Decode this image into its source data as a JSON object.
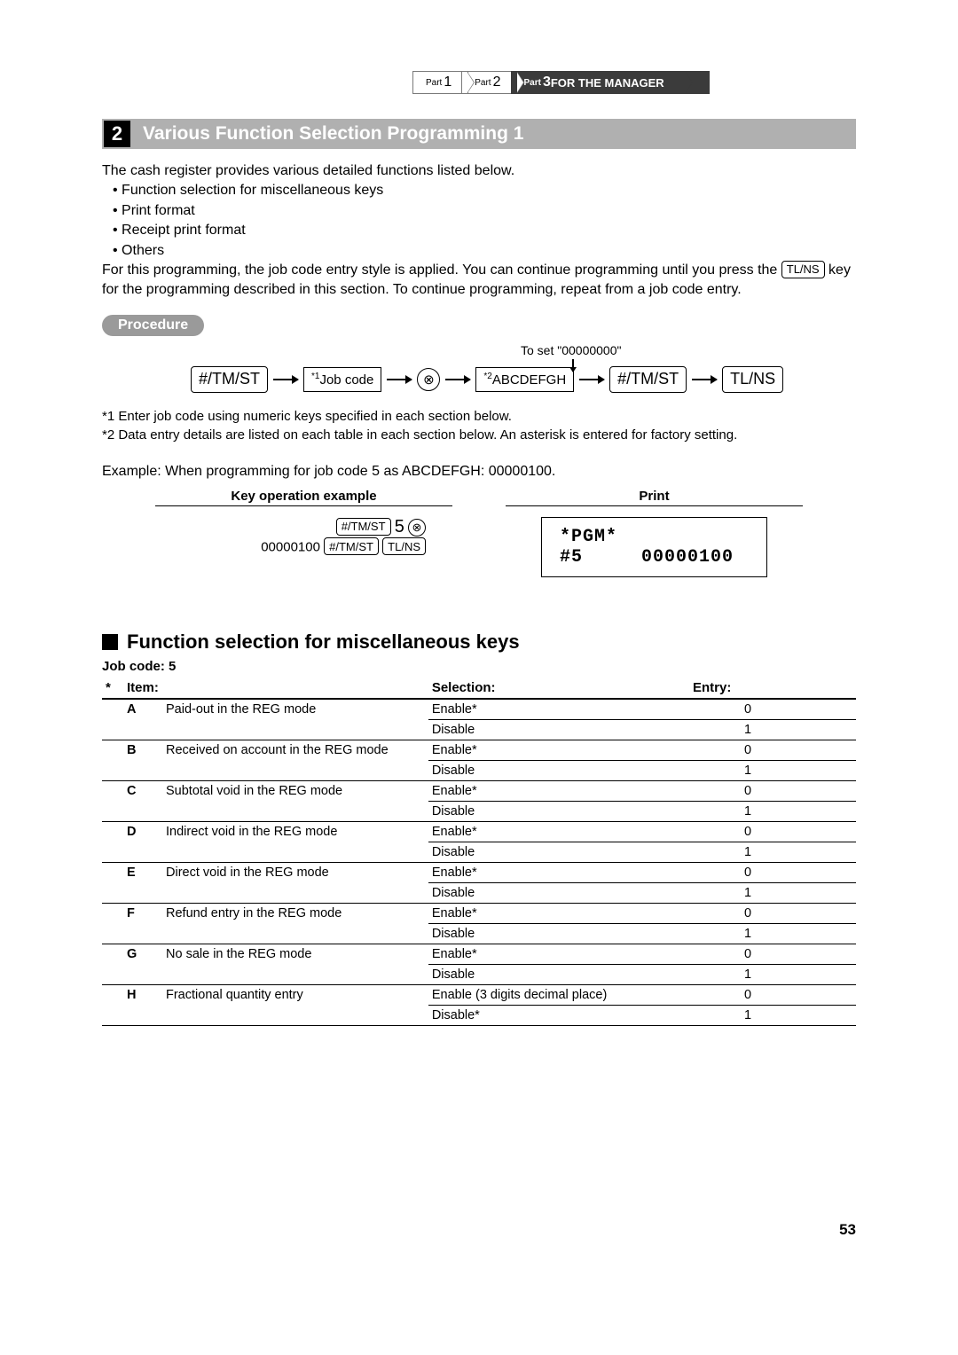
{
  "breadcrumb": {
    "p1_prefix": "Part",
    "p1_num": "1",
    "p2_prefix": "Part",
    "p2_num": "2",
    "p3_prefix": "Part",
    "p3_num": "3",
    "p3_label": " FOR THE MANAGER"
  },
  "section": {
    "num": "2",
    "title": "Various Function Selection Programming 1"
  },
  "intro": "The cash register provides various detailed functions listed below.",
  "bullets": {
    "b1": "• Function selection for miscellaneous keys",
    "b2": "• Print format",
    "b3": "• Receipt print format",
    "b4": "• Others"
  },
  "para2_a": "For this programming, the job code entry style is applied.  You can continue programming until you press the ",
  "tlns": "TL/NS",
  "para2_b": " key for the programming described in this section.  To continue programming, repeat from a job code entry.",
  "procedure_label": "Procedure",
  "flow": {
    "k1": "#/TM/ST",
    "job_sup": "*1",
    "job": "Job code",
    "circle": "⊗",
    "abc_sup": "*2",
    "abc": "ABCDEFGH",
    "k2": "#/TM/ST",
    "k3": "TL/NS",
    "zero_note": "To set \"00000000\""
  },
  "notes": {
    "n1": "*1  Enter job code using numeric keys specified in each section below.",
    "n2": "*2  Data entry details are listed on each table in each section below.  An asterisk is entered for factory setting."
  },
  "example_line": "Example:  When programming for job code 5 as ABCDEFGH: 00000100.",
  "ex_head_left": "Key operation example",
  "ex_head_right": "Print",
  "key_ops": {
    "l1_key": "#/TM/ST",
    "l1_5": "5",
    "l1_circ": "⊗",
    "l2_num": "00000100",
    "l2_k1": "#/TM/ST",
    "l2_k2": "TL/NS"
  },
  "print_box": {
    "l1": "*PGM*",
    "l2_a": "#5",
    "l2_b": "00000100"
  },
  "subhead": "Function selection for miscellaneous keys",
  "jobcode": "Job code:  5",
  "table_head": {
    "star": "*",
    "item": "Item:",
    "sel": "Selection:",
    "entry": "Entry:"
  },
  "rows": [
    {
      "l": "A",
      "item": "Paid-out in the REG mode",
      "s1": "Enable*",
      "e1": "0",
      "s2": "Disable",
      "e2": "1"
    },
    {
      "l": "B",
      "item": "Received on account in the REG mode",
      "s1": "Enable*",
      "e1": "0",
      "s2": "Disable",
      "e2": "1"
    },
    {
      "l": "C",
      "item": "Subtotal void in the REG mode",
      "s1": "Enable*",
      "e1": "0",
      "s2": "Disable",
      "e2": "1"
    },
    {
      "l": "D",
      "item": "Indirect void in the REG mode",
      "s1": "Enable*",
      "e1": "0",
      "s2": "Disable",
      "e2": "1"
    },
    {
      "l": "E",
      "item": "Direct void in the REG mode",
      "s1": "Enable*",
      "e1": "0",
      "s2": "Disable",
      "e2": "1"
    },
    {
      "l": "F",
      "item": "Refund entry in the REG mode",
      "s1": "Enable*",
      "e1": "0",
      "s2": "Disable",
      "e2": "1"
    },
    {
      "l": "G",
      "item": "No sale in the REG mode",
      "s1": "Enable*",
      "e1": "0",
      "s2": "Disable",
      "e2": "1"
    },
    {
      "l": "H",
      "item": "Fractional quantity entry",
      "s1": "Enable (3 digits decimal place)",
      "e1": "0",
      "s2": "Disable*",
      "e2": "1"
    }
  ],
  "page_num": "53",
  "colors": {
    "bar": "#b0b0b0",
    "dark": "#3b3b3b",
    "proc": "#9a9a9a"
  }
}
